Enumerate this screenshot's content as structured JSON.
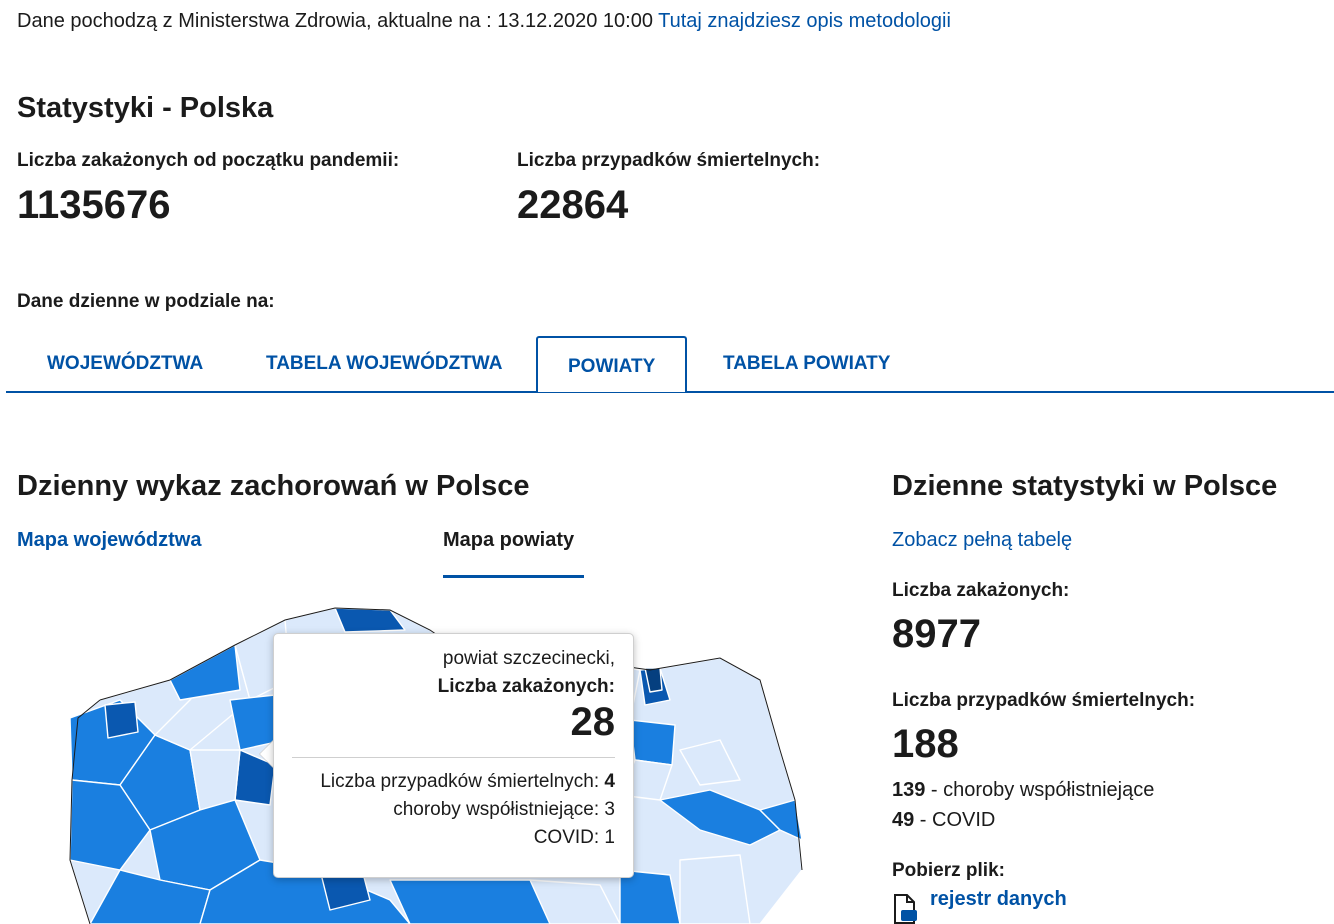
{
  "source": {
    "text": "Dane pochodzą z Ministerstwa Zdrowia, aktualne na : 13.12.2020 10:00 ",
    "link": "Tutaj znajdziesz opis metodologii"
  },
  "summary": {
    "title": "Statystyki - Polska",
    "infected_label": "Liczba zakażonych od początku pandemii:",
    "infected_value": "1135676",
    "deaths_label": "Liczba przypadków śmiertelnych:",
    "deaths_value": "22864"
  },
  "daily_label": "Dane dzienne w podziale na:",
  "tabs": [
    {
      "label": "WOJEWÓDZTWA",
      "active": false
    },
    {
      "label": "TABELA WOJEWÓDZTWA",
      "active": false
    },
    {
      "label": "POWIATY",
      "active": true
    },
    {
      "label": "TABELA POWIATY",
      "active": false
    }
  ],
  "map_section": {
    "title": "Dzienny wykaz zachorowań w Polsce",
    "subtab_voivodeship": "Mapa województwa",
    "subtab_county": "Mapa powiaty"
  },
  "tooltip": {
    "name": "powiat szczecinecki,",
    "infected_label": "Liczba zakażonych:",
    "infected_value": "28",
    "deaths_label": "Liczba przypadków śmiertelnych: ",
    "deaths_value": "4",
    "comorbid_label": "choroby współistniejące: ",
    "comorbid_value": "3",
    "covid_label": "COVID: ",
    "covid_value": "1"
  },
  "daily_stats": {
    "title": "Dzienne statystyki w Polsce",
    "table_link": "Zobacz pełną tabelę",
    "infected_label": "Liczba zakażonych:",
    "infected_value": "8977",
    "deaths_label": "Liczba przypadków śmiertelnych:",
    "deaths_value": "188",
    "comorbid_value": "139",
    "comorbid_label": " - choroby współistniejące",
    "covid_value": "49",
    "covid_label": " - COVID",
    "download_label": "Pobierz plik:",
    "file_link": "rejestr danych"
  },
  "colors": {
    "accent": "#0052a5",
    "map_level_1": "#dbe9fb",
    "map_level_2": "#1a7fe0",
    "map_level_3": "#0a58b0",
    "map_level_4": "#053f7f"
  }
}
